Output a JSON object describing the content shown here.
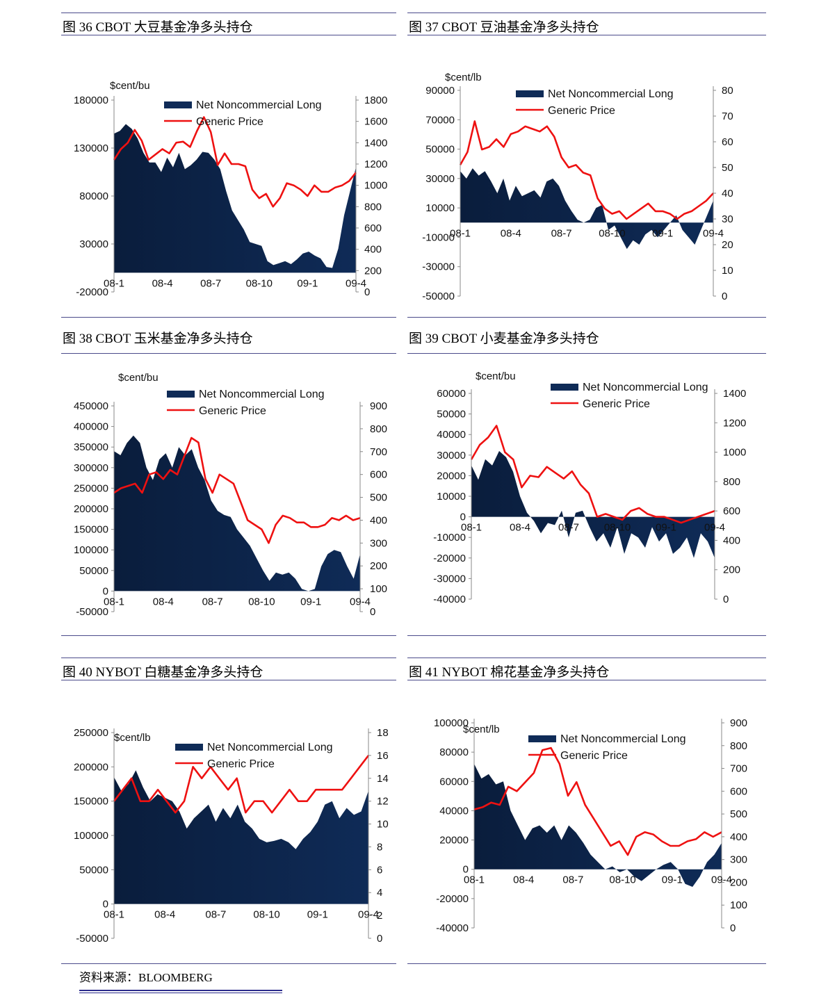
{
  "source_label": "资料来源：BLOOMBERG",
  "colors": {
    "area": "#0f2b57",
    "price": "#ee1111",
    "rule": "#4a4a8a"
  },
  "legend": {
    "area": "Net Noncommercial Long",
    "price": "Generic Price"
  },
  "chart_data": [
    {
      "id": "fig36",
      "title": "图 36 CBOT 大豆基金净多头持仓",
      "type": "area+line",
      "unit": "$cent/bu",
      "x_ticks": [
        "08-1",
        "08-4",
        "08-7",
        "08-10",
        "09-1",
        "09-4"
      ],
      "y_left": {
        "min": -20000,
        "max": 180000,
        "ticks": [
          180000,
          130000,
          80000,
          30000,
          -20000
        ]
      },
      "y_right": {
        "min": 0,
        "max": 1800,
        "ticks": [
          1800,
          1600,
          1400,
          1200,
          1000,
          800,
          600,
          400,
          200,
          0
        ]
      },
      "series": [
        {
          "name": "Net Noncommercial Long",
          "axis": "left",
          "values": [
            145000,
            148000,
            155000,
            150000,
            140000,
            125000,
            115000,
            115000,
            105000,
            120000,
            110000,
            125000,
            108000,
            112000,
            118000,
            126000,
            125000,
            118000,
            108000,
            85000,
            65000,
            55000,
            45000,
            32000,
            30000,
            28000,
            12000,
            8000,
            10000,
            12000,
            9000,
            14000,
            20000,
            22000,
            18000,
            15000,
            6000,
            5000,
            25000,
            60000,
            85000,
            110000
          ]
        },
        {
          "name": "Generic Price",
          "axis": "right",
          "values": [
            1240,
            1340,
            1400,
            1520,
            1420,
            1240,
            1290,
            1340,
            1300,
            1400,
            1410,
            1360,
            1510,
            1640,
            1500,
            1190,
            1300,
            1200,
            1200,
            1180,
            960,
            880,
            920,
            800,
            880,
            1020,
            1000,
            960,
            900,
            1000,
            940,
            940,
            980,
            1000,
            1040,
            1120
          ]
        }
      ]
    },
    {
      "id": "fig37",
      "title": "图 37 CBOT 豆油基金净多头持仓",
      "type": "area+line",
      "unit": "$cent/lb",
      "x_ticks": [
        "08-1",
        "08-4",
        "08-7",
        "08-10",
        "09-1",
        "09-4"
      ],
      "y_left": {
        "min": -50000,
        "max": 90000,
        "ticks": [
          90000,
          70000,
          50000,
          30000,
          10000,
          -10000,
          -30000,
          -50000
        ]
      },
      "y_right": {
        "min": 0,
        "max": 80,
        "ticks": [
          80,
          70,
          60,
          50,
          40,
          30,
          20,
          10,
          0
        ]
      },
      "series": [
        {
          "name": "Net Noncommercial Long",
          "axis": "left",
          "values": [
            35000,
            30000,
            37000,
            32000,
            35000,
            28000,
            20000,
            30000,
            15000,
            25000,
            18000,
            20000,
            22000,
            17000,
            28000,
            30000,
            25000,
            15000,
            8000,
            2000,
            0,
            2000,
            10000,
            12000,
            -5000,
            -2000,
            -10000,
            -18000,
            -12000,
            -15000,
            -8000,
            -5000,
            -10000,
            -5000,
            0,
            5000,
            -5000,
            -10000,
            -15000,
            -5000,
            5000,
            15000
          ]
        },
        {
          "name": "Generic Price",
          "axis": "right",
          "values": [
            51,
            56,
            68,
            57,
            58,
            61,
            58,
            63,
            64,
            66,
            65,
            64,
            66,
            62,
            54,
            50,
            51,
            48,
            47,
            38,
            34,
            32,
            33,
            30,
            32,
            34,
            36,
            33,
            33,
            32,
            30,
            32,
            33,
            35,
            37,
            40
          ]
        }
      ]
    },
    {
      "id": "fig38",
      "title": "图 38 CBOT 玉米基金净多头持仓",
      "type": "area+line",
      "unit": "$cent/bu",
      "x_ticks": [
        "08-1",
        "08-4",
        "08-7",
        "08-10",
        "09-1",
        "09-4"
      ],
      "y_left": {
        "min": -50000,
        "max": 450000,
        "ticks": [
          450000,
          400000,
          350000,
          300000,
          250000,
          200000,
          150000,
          100000,
          50000,
          0,
          -50000
        ]
      },
      "y_right": {
        "min": 0,
        "max": 900,
        "ticks": [
          900,
          800,
          700,
          600,
          500,
          400,
          300,
          200,
          100,
          0
        ]
      },
      "series": [
        {
          "name": "Net Noncommercial Long",
          "axis": "left",
          "values": [
            340000,
            330000,
            360000,
            378000,
            360000,
            300000,
            270000,
            320000,
            335000,
            300000,
            350000,
            330000,
            345000,
            300000,
            270000,
            220000,
            195000,
            185000,
            180000,
            150000,
            130000,
            110000,
            80000,
            50000,
            25000,
            45000,
            40000,
            45000,
            30000,
            5000,
            0,
            5000,
            60000,
            90000,
            100000,
            95000,
            60000,
            30000,
            90000
          ]
        },
        {
          "name": "Generic Price",
          "axis": "right",
          "values": [
            520,
            540,
            550,
            560,
            520,
            600,
            610,
            580,
            620,
            600,
            680,
            760,
            740,
            580,
            520,
            600,
            580,
            560,
            480,
            400,
            380,
            360,
            300,
            380,
            420,
            410,
            390,
            390,
            370,
            370,
            380,
            410,
            400,
            420,
            400,
            410
          ]
        }
      ]
    },
    {
      "id": "fig39",
      "title": "图 39 CBOT 小麦基金净多头持仓",
      "type": "area+line",
      "unit": "$cent/bu",
      "x_ticks": [
        "08-1",
        "08-4",
        "08-7",
        "08-10",
        "09-1",
        "09-4"
      ],
      "y_left": {
        "min": -40000,
        "max": 60000,
        "ticks": [
          60000,
          50000,
          40000,
          30000,
          20000,
          10000,
          0,
          -10000,
          -20000,
          -30000,
          -40000
        ]
      },
      "y_right": {
        "min": 0,
        "max": 1400,
        "ticks": [
          1400,
          1200,
          1000,
          800,
          600,
          400,
          200,
          0
        ]
      },
      "series": [
        {
          "name": "Net Noncommercial Long",
          "axis": "left",
          "values": [
            25000,
            18000,
            28000,
            25000,
            32000,
            29000,
            22000,
            10000,
            2000,
            -2000,
            -8000,
            -3000,
            -4000,
            3000,
            -10000,
            2000,
            3000,
            -5000,
            -12000,
            -8000,
            -15000,
            -5000,
            -18000,
            -8000,
            -10000,
            -15000,
            -5000,
            -12000,
            -8000,
            -18000,
            -15000,
            -10000,
            -20000,
            -8000,
            -12000,
            -20000
          ]
        },
        {
          "name": "Generic Price",
          "axis": "right",
          "values": [
            950,
            1050,
            1100,
            1180,
            1000,
            950,
            760,
            840,
            830,
            900,
            860,
            820,
            870,
            780,
            720,
            560,
            580,
            560,
            540,
            600,
            620,
            580,
            560,
            560,
            540,
            520,
            540,
            560,
            580,
            600
          ]
        }
      ]
    },
    {
      "id": "fig40",
      "title": "图 40 NYBOT 白糖基金净多头持仓",
      "type": "area+line",
      "unit": "$cent/lb",
      "x_ticks": [
        "08-1",
        "08-4",
        "08-7",
        "08-10",
        "09-1",
        "09-4"
      ],
      "y_left": {
        "min": -50000,
        "max": 250000,
        "ticks": [
          250000,
          200000,
          150000,
          100000,
          50000,
          0,
          -50000
        ]
      },
      "y_right": {
        "min": 0,
        "max": 18,
        "ticks": [
          18,
          16,
          14,
          12,
          10,
          8,
          6,
          4,
          2,
          0
        ]
      },
      "series": [
        {
          "name": "Net Noncommercial Long",
          "axis": "left",
          "values": [
            185000,
            165000,
            175000,
            195000,
            170000,
            150000,
            160000,
            155000,
            150000,
            135000,
            110000,
            125000,
            135000,
            145000,
            120000,
            140000,
            125000,
            145000,
            120000,
            110000,
            95000,
            90000,
            92000,
            95000,
            90000,
            80000,
            95000,
            105000,
            120000,
            145000,
            150000,
            125000,
            140000,
            130000,
            135000,
            165000
          ]
        },
        {
          "name": "Generic Price",
          "axis": "right",
          "values": [
            12,
            13,
            14,
            12,
            12,
            13,
            12,
            11,
            12,
            15,
            14,
            15,
            14,
            13,
            14,
            11,
            12,
            12,
            11,
            12,
            13,
            12,
            12,
            13,
            13,
            13,
            13,
            14,
            15,
            16
          ]
        }
      ]
    },
    {
      "id": "fig41",
      "title": "图 41 NYBOT 棉花基金净多头持仓",
      "type": "area+line",
      "unit": "$cent/lb",
      "x_ticks": [
        "08-1",
        "08-4",
        "08-7",
        "08-10",
        "09-1",
        "09-4"
      ],
      "y_left": {
        "min": -40000,
        "max": 100000,
        "ticks": [
          100000,
          80000,
          60000,
          40000,
          20000,
          0,
          -20000,
          -40000
        ]
      },
      "y_right": {
        "min": 0,
        "max": 900,
        "ticks": [
          900,
          800,
          700,
          600,
          500,
          400,
          300,
          200,
          100,
          0
        ]
      },
      "series": [
        {
          "name": "Net Noncommercial Long",
          "axis": "left",
          "values": [
            72000,
            62000,
            65000,
            58000,
            60000,
            40000,
            30000,
            20000,
            28000,
            30000,
            25000,
            30000,
            20000,
            30000,
            25000,
            18000,
            10000,
            5000,
            0,
            2000,
            -2000,
            0,
            -5000,
            -8000,
            -4000,
            0,
            3000,
            5000,
            0,
            -10000,
            -12000,
            -5000,
            5000,
            10000,
            18000
          ]
        },
        {
          "name": "Generic Price",
          "axis": "right",
          "values": [
            520,
            530,
            550,
            540,
            620,
            600,
            640,
            680,
            780,
            790,
            720,
            580,
            640,
            540,
            480,
            420,
            360,
            380,
            320,
            400,
            420,
            410,
            380,
            360,
            360,
            380,
            390,
            420,
            400,
            420
          ]
        }
      ]
    }
  ]
}
